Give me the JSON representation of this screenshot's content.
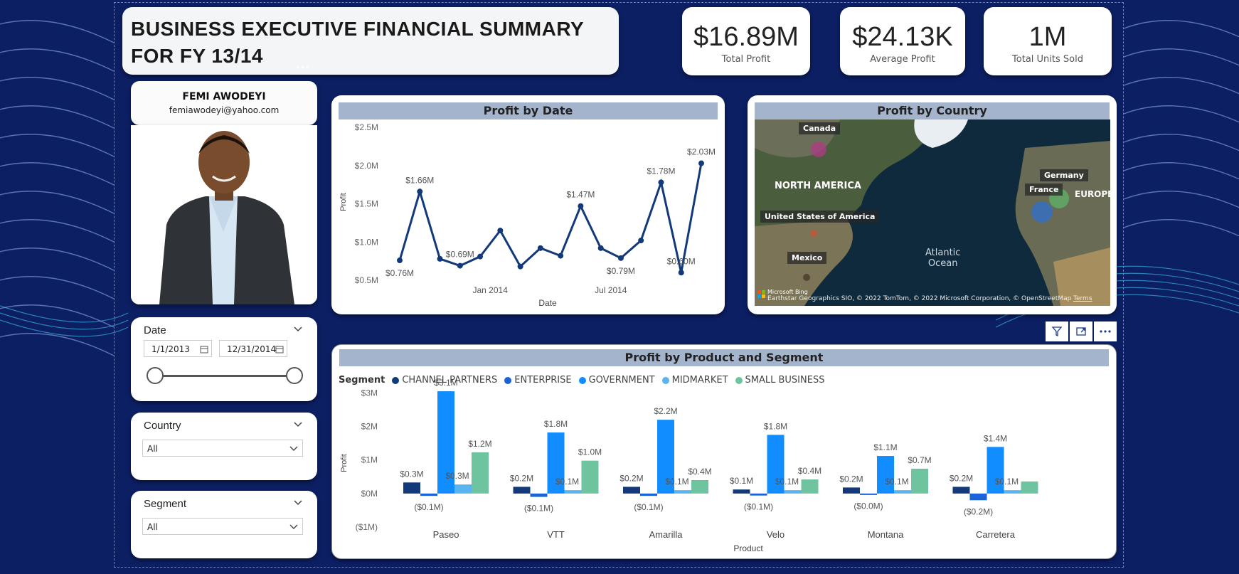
{
  "header": {
    "title_line1": "BUSINESS EXECUTIVE FINANCIAL SUMMARY",
    "title_line2": "FOR FY 13/14"
  },
  "kpis": [
    {
      "value": "$16.89M",
      "label": "Total Profit"
    },
    {
      "value": "$24.13K",
      "label": "Average Profit"
    },
    {
      "value": "1M",
      "label": "Total Units Sold"
    }
  ],
  "profile": {
    "name": "FEMI AWODEYI",
    "email": "femiawodeyi@yahoo.com"
  },
  "more_dots": "···",
  "slicers": {
    "date": {
      "title": "Date",
      "start": "1/1/2013",
      "end": "12/31/2014",
      "slider_start_fraction": 0,
      "slider_end_fraction": 1
    },
    "country": {
      "title": "Country",
      "selected": "All"
    },
    "segment": {
      "title": "Segment",
      "selected": "All"
    }
  },
  "map": {
    "title": "Profit by Country",
    "labels": {
      "canada": "Canada",
      "north_america": "NORTH AMERICA",
      "usa": "United States of America",
      "mexico": "Mexico",
      "atlantic": "Atlantic",
      "ocean": "Ocean",
      "germany": "Germany",
      "france": "France",
      "europe": "EUROPE"
    },
    "attribution": "Earthstar Geographics SIO, © 2022 TomTom, © 2022 Microsoft Corporation, © OpenStreetMap",
    "terms": "Terms",
    "bing": "Microsoft Bing"
  },
  "colors": {
    "navy": "#12397a",
    "enterprise": "#1a62d6",
    "government": "#118dff",
    "midmarket": "#5ab4f0",
    "small_business": "#6fc4a0",
    "panel_header": "#a4b4cd"
  },
  "chart_data": [
    {
      "type": "line",
      "title": "Profit by Date",
      "xlabel": "Date",
      "ylabel": "Profit",
      "y_ticks": [
        "$0.5M",
        "$1.0M",
        "$1.5M",
        "$2.0M",
        "$2.5M"
      ],
      "ylim": [
        0.5,
        2.5
      ],
      "x_ticks": [
        "Jan 2014",
        "Jul 2014"
      ],
      "series": [
        {
          "values": [
            0.76,
            1.66,
            0.78,
            0.69,
            0.81,
            1.15,
            0.68,
            0.92,
            0.82,
            1.47,
            0.92,
            0.79,
            1.02,
            1.78,
            0.6,
            2.03
          ],
          "data_labels": [
            "$0.76M",
            "$1.66M",
            "",
            "$0.69M",
            "",
            "",
            "",
            "",
            "",
            "$1.47M",
            "",
            "$0.79M",
            "",
            "$1.78M",
            "$0.60M",
            "$2.03M"
          ]
        }
      ]
    },
    {
      "type": "bar",
      "title": "Profit by Product and Segment",
      "xlabel": "Product",
      "ylabel": "Profit",
      "legend_title": "Segment",
      "legend_position": "top-left",
      "y_ticks": [
        "($1M)",
        "$0M",
        "$1M",
        "$2M",
        "$3M"
      ],
      "ylim": [
        -1,
        3.2
      ],
      "categories": [
        "Paseo",
        "VTT",
        "Amarilla",
        "Velo",
        "Montana",
        "Carretera"
      ],
      "series": [
        {
          "name": "CHANNEL PARTNERS",
          "values": [
            0.33,
            0.2,
            0.2,
            0.12,
            0.18,
            0.2
          ],
          "labels": [
            "$0.3M",
            "$0.2M",
            "$0.2M",
            "$0.1M",
            "$0.2M",
            "$0.2M"
          ]
        },
        {
          "name": "ENTERPRISE",
          "values": [
            -0.07,
            -0.1,
            -0.07,
            -0.06,
            -0.03,
            -0.2
          ],
          "labels": [
            "($0.1M)",
            "($0.1M)",
            "($0.1M)",
            "($0.1M)",
            "($0.0M)",
            "($0.2M)"
          ]
        },
        {
          "name": "GOVERNMENT",
          "values": [
            3.05,
            1.82,
            2.2,
            1.75,
            1.12,
            1.39
          ],
          "labels": [
            "$3.1M",
            "$1.8M",
            "$2.2M",
            "$1.8M",
            "$1.1M",
            "$1.4M"
          ]
        },
        {
          "name": "MIDMARKET",
          "values": [
            0.27,
            0.1,
            0.1,
            0.1,
            0.1,
            0.1
          ],
          "labels": [
            "$0.3M",
            "$0.1M",
            "$0.1M",
            "$0.1M",
            "$0.1M",
            "$0.1M"
          ]
        },
        {
          "name": "SMALL BUSINESS",
          "values": [
            1.23,
            0.98,
            0.4,
            0.42,
            0.74,
            0.36
          ],
          "labels": [
            "$1.2M",
            "$1.0M",
            "$0.4M",
            "$0.4M",
            "$0.7M",
            ""
          ]
        }
      ]
    }
  ]
}
